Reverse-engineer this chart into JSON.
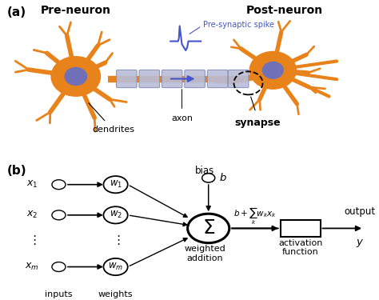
{
  "bg_color": "#ffffff",
  "orange_color": "#E8821A",
  "purple_color": "#7070B8",
  "blue_color": "#4455CC",
  "axon_color": "#B8BDD8",
  "axon_edge": "#8890B8",
  "panel_a_label": "(a)",
  "panel_b_label": "(b)",
  "pre_neuron_label": "Pre-neuron",
  "post_neuron_label": "Post-neuron",
  "spike_label": "Pre-synaptic spike",
  "dendrites_label": "dendrites",
  "axon_label": "axon",
  "synapse_label": "synapse",
  "bias_label": "bias",
  "weighted_addition_label": "weighted\naddition",
  "activation_label": "activation\nfunction",
  "output_label": "output",
  "inputs_label": "inputs",
  "weights_label": "weights"
}
